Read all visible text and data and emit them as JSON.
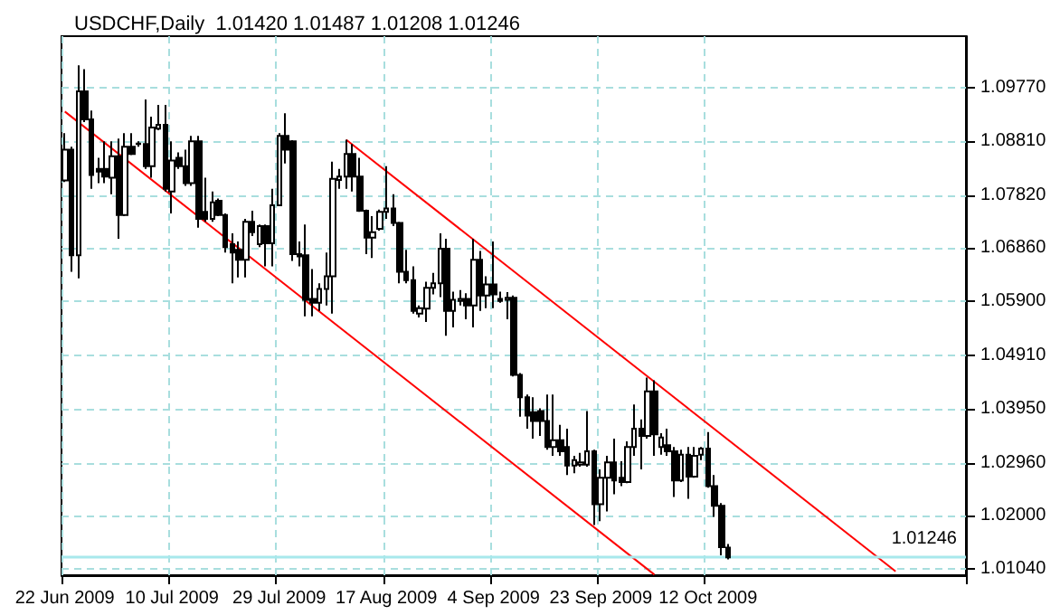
{
  "chart_data": {
    "type": "candlestick",
    "title": "USDCHF,Daily  1.01420 1.01487 1.01208 1.01246",
    "categories": [
      "22 Jun 2009",
      null,
      null,
      null,
      null,
      null,
      null,
      null,
      null,
      null,
      null,
      null,
      null,
      null,
      null,
      null,
      "10 Jul 2009",
      null,
      null,
      null,
      null,
      null,
      null,
      null,
      null,
      null,
      null,
      null,
      null,
      null,
      null,
      null,
      "29 Jul 2009",
      null,
      null,
      null,
      null,
      null,
      null,
      null,
      null,
      null,
      null,
      null,
      null,
      null,
      null,
      null,
      "17 Aug 2009",
      null,
      null,
      null,
      null,
      null,
      null,
      null,
      null,
      null,
      null,
      null,
      null,
      null,
      null,
      null,
      "4 Sep 2009",
      null,
      null,
      null,
      null,
      null,
      null,
      null,
      null,
      null,
      null,
      null,
      null,
      null,
      null,
      null,
      "23 Sep 2009",
      null,
      null,
      null,
      null,
      null,
      null,
      null,
      null,
      null,
      null,
      null,
      null,
      null,
      null,
      null,
      "12 Oct 2009",
      null,
      null,
      null,
      null,
      null,
      null,
      null,
      null,
      null,
      null,
      null,
      null,
      null,
      null,
      null,
      null,
      null,
      null,
      null,
      null,
      null,
      null,
      null,
      null,
      null,
      null,
      null,
      null,
      null,
      null,
      null,
      null,
      null,
      null,
      null,
      null,
      null,
      null
    ],
    "series": [
      {
        "color": "#000000",
        "ohlc": [
          [
            1.0809,
            1.0895,
            1.0806,
            1.0865
          ],
          [
            1.0865,
            1.087,
            1.0643,
            1.0673
          ],
          [
            1.0673,
            1.1018,
            1.0631,
            1.0971
          ],
          [
            1.0971,
            1.1011,
            1.0915,
            1.092
          ],
          [
            1.092,
            1.0936,
            1.0794,
            1.0819
          ],
          [
            1.083,
            1.085,
            1.0804,
            1.0825
          ],
          [
            1.083,
            1.088,
            1.0804,
            1.0816
          ],
          [
            1.0814,
            1.088,
            1.0784,
            1.0853
          ],
          [
            1.0853,
            1.0885,
            1.0703,
            1.0746
          ],
          [
            1.0746,
            1.0895,
            1.0744,
            1.087
          ],
          [
            1.087,
            1.0895,
            1.0855,
            1.0857
          ],
          [
            1.0875,
            1.088,
            1.087,
            1.0876
          ],
          [
            1.0875,
            1.0956,
            1.083,
            1.0835
          ],
          [
            1.0835,
            1.0925,
            1.0814,
            1.0905
          ],
          [
            1.0903,
            1.0946,
            1.09,
            1.091
          ],
          [
            1.091,
            1.0946,
            1.0789,
            1.0794
          ],
          [
            1.0789,
            1.088,
            1.0749,
            1.0845
          ],
          [
            1.085,
            1.086,
            1.083,
            1.0835
          ],
          [
            1.0835,
            1.0865,
            1.0799,
            1.0804
          ],
          [
            1.0804,
            1.089,
            1.0799,
            1.088
          ],
          [
            1.088,
            1.089,
            1.0723,
            1.0739
          ],
          [
            1.0752,
            1.0814,
            1.0734,
            1.0739
          ],
          [
            1.0739,
            1.0789,
            1.0734,
            1.0769
          ],
          [
            1.0772,
            1.0776,
            1.0744,
            1.0746
          ],
          [
            1.0746,
            1.0749,
            1.0678,
            1.0688
          ],
          [
            1.0693,
            1.0713,
            1.0622,
            1.0678
          ],
          [
            1.0683,
            1.0698,
            1.0633,
            1.0665
          ],
          [
            1.0665,
            1.0739,
            1.0633,
            1.0734
          ],
          [
            1.0734,
            1.0754,
            1.0708,
            1.0715
          ],
          [
            1.0693,
            1.0729,
            1.0688,
            1.0726
          ],
          [
            1.0726,
            1.0729,
            1.0653,
            1.0695
          ],
          [
            1.0695,
            1.0794,
            1.0653,
            1.0764
          ],
          [
            1.0764,
            1.0895,
            1.0762,
            1.089
          ],
          [
            1.089,
            1.0931,
            1.084,
            1.0865
          ],
          [
            1.088,
            1.0882,
            1.0663,
            1.0675
          ],
          [
            1.0675,
            1.0698,
            1.0653,
            1.0671
          ],
          [
            1.0673,
            1.0729,
            1.0562,
            1.0592
          ],
          [
            1.0594,
            1.0648,
            1.0562,
            1.0587
          ],
          [
            1.0587,
            1.0622,
            1.0572,
            1.0612
          ],
          [
            1.0612,
            1.0678,
            1.0582,
            1.0635
          ],
          [
            1.0635,
            1.0843,
            1.0567,
            1.0812
          ],
          [
            1.081,
            1.083,
            1.0794,
            1.0816
          ],
          [
            1.0816,
            1.0883,
            1.0794,
            1.0857
          ],
          [
            1.0857,
            1.0875,
            1.0789,
            1.0816
          ],
          [
            1.0816,
            1.085,
            1.0752,
            1.0754
          ],
          [
            1.0754,
            1.0756,
            1.0675,
            1.0705
          ],
          [
            1.0705,
            1.0744,
            1.0668,
            1.0715
          ],
          [
            1.0721,
            1.0756,
            1.0718,
            1.0752
          ],
          [
            1.0752,
            1.0835,
            1.0739,
            1.0758
          ],
          [
            1.0758,
            1.0784,
            1.0726,
            1.0732
          ],
          [
            1.0732,
            1.0734,
            1.0622,
            1.0643
          ],
          [
            1.0643,
            1.0683,
            1.0622,
            1.0628
          ],
          [
            1.0628,
            1.0653,
            1.0567,
            1.0572
          ],
          [
            1.0567,
            1.0582,
            1.056,
            1.0577
          ],
          [
            1.0576,
            1.0625,
            1.0552,
            1.0614
          ],
          [
            1.0614,
            1.0641,
            1.0602,
            1.0622
          ],
          [
            1.0622,
            1.0713,
            1.0597,
            1.0685
          ],
          [
            1.0685,
            1.0703,
            1.0527,
            1.0572
          ],
          [
            1.0572,
            1.0607,
            1.0542,
            1.0592
          ],
          [
            1.059,
            1.061,
            1.0582,
            1.0594
          ],
          [
            1.0594,
            1.0604,
            1.0557,
            1.0582
          ],
          [
            1.0582,
            1.0703,
            1.0542,
            1.0665
          ],
          [
            1.0665,
            1.0681,
            1.0572,
            1.06
          ],
          [
            1.06,
            1.0635,
            1.0577,
            1.062
          ],
          [
            1.062,
            1.0698,
            1.0577,
            1.0602
          ],
          [
            1.0594,
            1.0607,
            1.0587,
            1.059
          ],
          [
            1.0592,
            1.0606,
            1.0557,
            1.0596
          ],
          [
            1.0596,
            1.06,
            1.0453,
            1.0456
          ],
          [
            1.0456,
            1.0459,
            1.038,
            1.0415
          ],
          [
            1.0415,
            1.042,
            1.0358,
            1.0382
          ],
          [
            1.0388,
            1.0415,
            1.034,
            1.0372
          ],
          [
            1.039,
            1.0395,
            1.0345,
            1.0372
          ],
          [
            1.0372,
            1.042,
            1.032,
            1.0325
          ],
          [
            1.0325,
            1.042,
            1.0309,
            1.0337
          ],
          [
            1.0337,
            1.0365,
            1.0309,
            1.0317
          ],
          [
            1.0325,
            1.0358,
            1.0274,
            1.0291
          ],
          [
            1.0291,
            1.0309,
            1.0277,
            1.0301
          ],
          [
            1.0293,
            1.0314,
            1.0289,
            1.0297
          ],
          [
            1.0293,
            1.039,
            1.0289,
            1.0317
          ],
          [
            1.0317,
            1.032,
            1.0183,
            1.0221
          ],
          [
            1.0221,
            1.0284,
            1.019,
            1.0269
          ],
          [
            1.0269,
            1.0309,
            1.0208,
            1.0297
          ],
          [
            1.0297,
            1.034,
            1.0239,
            1.0264
          ],
          [
            1.0269,
            1.0299,
            1.0254,
            1.0261
          ],
          [
            1.0261,
            1.0335,
            1.0259,
            1.0325
          ],
          [
            1.0325,
            1.0402,
            1.0309,
            1.0358
          ],
          [
            1.0358,
            1.0375,
            1.0284,
            1.0345
          ],
          [
            1.0345,
            1.0451,
            1.034,
            1.0426
          ],
          [
            1.0426,
            1.0446,
            1.0309,
            1.0348
          ],
          [
            1.0325,
            1.035,
            1.0311,
            1.0342
          ],
          [
            1.0328,
            1.0358,
            1.0309,
            1.0317
          ],
          [
            1.0317,
            1.0325,
            1.0234,
            1.0264
          ],
          [
            1.0264,
            1.032,
            1.0261,
            1.0311
          ],
          [
            1.0311,
            1.0325,
            1.0231,
            1.0271
          ],
          [
            1.0271,
            1.0325,
            1.0269,
            1.0309
          ],
          [
            1.0311,
            1.0325,
            1.0301,
            1.0322
          ],
          [
            1.0322,
            1.0352,
            1.0251,
            1.0254
          ],
          [
            1.0254,
            1.0274,
            1.0198,
            1.0218
          ],
          [
            1.0218,
            1.0223,
            1.0128,
            1.0143
          ],
          [
            1.0142,
            1.01487,
            1.01208,
            1.01246
          ],
          null,
          null,
          null,
          null,
          null,
          null,
          null,
          null,
          null,
          null,
          null,
          null,
          null,
          null,
          null,
          null,
          null,
          null,
          null,
          null,
          null,
          null,
          null,
          null,
          null,
          null,
          null,
          null,
          null,
          null,
          null,
          null,
          null,
          null,
          null
        ]
      },
      {
        "type": "line",
        "color": "#ff0000",
        "values": [
          null,
          null,
          null,
          null,
          null,
          null,
          null,
          null,
          null,
          null,
          null,
          null,
          null,
          null,
          null,
          null,
          null,
          null,
          null,
          null,
          null,
          null,
          null,
          null,
          null,
          null,
          null,
          null,
          null,
          null,
          null,
          null,
          null,
          null,
          null,
          null,
          null,
          null,
          null,
          null,
          null,
          null,
          1.0883,
          null,
          null,
          null,
          null,
          null,
          null,
          null,
          null,
          null,
          null,
          null,
          null,
          null,
          null,
          null,
          null,
          null,
          null,
          null,
          null,
          null,
          null,
          null,
          null,
          null,
          null,
          null,
          null,
          null,
          null,
          null,
          null,
          null,
          null,
          null,
          null,
          null,
          null,
          null,
          null,
          null,
          null,
          null,
          null,
          null,
          null,
          null,
          null,
          null,
          null,
          null,
          null,
          null,
          null,
          null,
          null,
          null,
          null,
          null,
          null,
          null,
          null,
          null,
          null,
          null,
          null,
          null,
          null,
          null,
          null,
          null,
          null,
          null,
          null,
          null,
          null,
          null,
          null,
          null,
          null,
          null,
          1.0099,
          null,
          null,
          null,
          null,
          null,
          null,
          null,
          null,
          null,
          null
        ]
      },
      {
        "type": "line",
        "color": "#ff0000",
        "values": [
          1.0934,
          null,
          null,
          null,
          null,
          null,
          null,
          null,
          null,
          null,
          null,
          null,
          null,
          null,
          null,
          null,
          null,
          null,
          null,
          null,
          null,
          null,
          null,
          null,
          null,
          null,
          null,
          null,
          null,
          null,
          null,
          null,
          null,
          null,
          null,
          null,
          null,
          null,
          null,
          null,
          null,
          null,
          null,
          null,
          null,
          null,
          null,
          null,
          null,
          null,
          null,
          null,
          null,
          null,
          null,
          null,
          null,
          null,
          null,
          null,
          null,
          null,
          null,
          null,
          null,
          null,
          null,
          null,
          null,
          null,
          null,
          null,
          null,
          null,
          null,
          null,
          null,
          null,
          null,
          null,
          null,
          null,
          null,
          null,
          null,
          null,
          null,
          null,
          1.0093,
          null,
          null,
          null,
          null,
          null,
          null,
          null,
          null,
          null,
          null,
          null,
          null,
          null,
          null,
          null,
          null,
          null,
          null,
          null,
          null,
          null,
          null,
          null,
          null,
          null,
          null,
          null,
          null,
          null,
          null,
          null,
          null,
          null,
          null,
          null,
          null,
          null,
          null,
          null,
          null,
          null,
          null,
          null,
          null,
          null,
          null
        ]
      }
    ],
    "ylim": [
      1.0092,
      1.1071
    ],
    "yticks": [
      {
        "value": 1.0977,
        "label": "1.09770"
      },
      {
        "value": 1.0881,
        "label": "1.08810"
      },
      {
        "value": 1.0782,
        "label": "1.07820"
      },
      {
        "value": 1.0686,
        "label": "1.06860"
      },
      {
        "value": 1.059,
        "label": "1.05900"
      },
      {
        "value": 1.0491,
        "label": "1.04910"
      },
      {
        "value": 1.0395,
        "label": "1.03950"
      },
      {
        "value": 1.0296,
        "label": "1.02960"
      },
      {
        "value": 1.02,
        "label": "1.02000"
      },
      {
        "value": 1.0104,
        "label": "1.01040"
      }
    ],
    "ref_lines": [
      {
        "axis": "y",
        "value": 1.01246,
        "label": "1.01246",
        "color": "#a8e8ec"
      }
    ],
    "grid": true,
    "marker": "none"
  }
}
